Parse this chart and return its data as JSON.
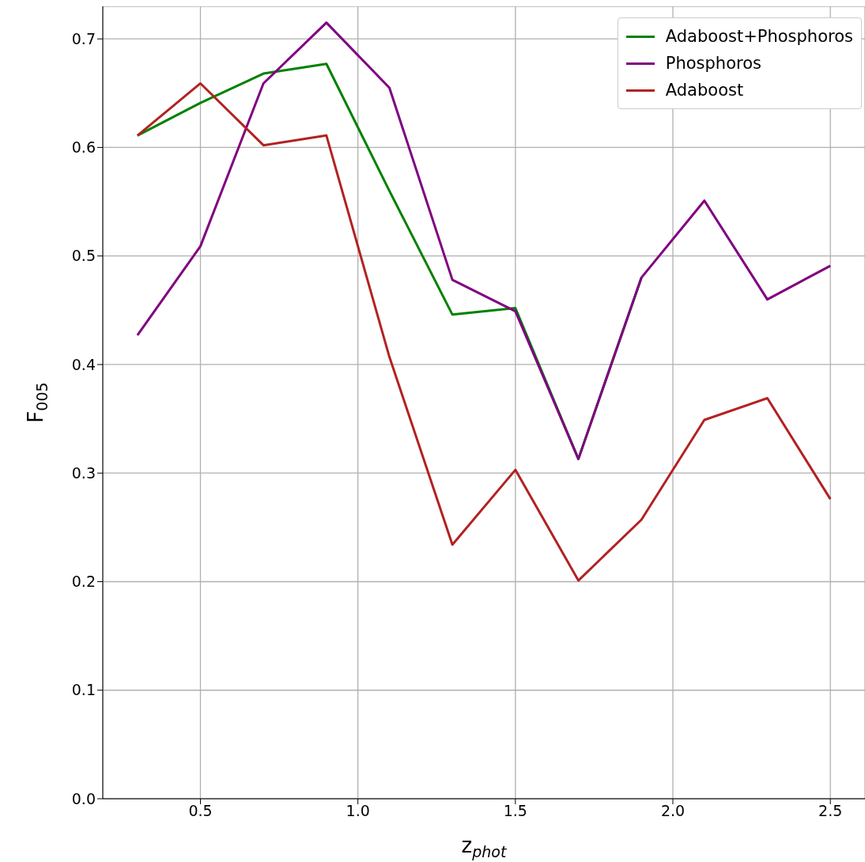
{
  "chart_data": {
    "type": "line",
    "xlabel": "z$_{phot}$",
    "ylabel": "F$_{005}$",
    "x": [
      0.3,
      0.5,
      0.7,
      0.9,
      1.1,
      1.3,
      1.5,
      1.7,
      1.9,
      2.1,
      2.3,
      2.5
    ],
    "xlim": [
      0.19,
      2.61
    ],
    "xticks": [
      {
        "value": 0.5,
        "label": "0.5"
      },
      {
        "value": 1.0,
        "label": "1.0"
      },
      {
        "value": 1.5,
        "label": "1.5"
      },
      {
        "value": 2.0,
        "label": "2.0"
      },
      {
        "value": 2.5,
        "label": "2.5"
      }
    ],
    "ylim": [
      0,
      0.73
    ],
    "yticks": [
      {
        "value": 0,
        "label": "0.0"
      },
      {
        "value": 0.1,
        "label": "0.1"
      },
      {
        "value": 0.2,
        "label": "0.2"
      },
      {
        "value": 0.3,
        "label": "0.3"
      },
      {
        "value": 0.4,
        "label": "0.4"
      },
      {
        "value": 0.5,
        "label": "0.5"
      },
      {
        "value": 0.6,
        "label": "0.6"
      },
      {
        "value": 0.7,
        "label": "0.7"
      }
    ],
    "grid": true,
    "legend": "top right",
    "marker": "none",
    "line_style": "solid",
    "series": [
      {
        "name": "Adaboost+Phosphoros",
        "color": "#008000",
        "values": [
          0.611,
          0.641,
          0.668,
          0.677,
          0.56,
          0.446,
          0.452,
          0.313,
          0.48,
          null,
          null,
          null
        ]
      },
      {
        "name": "Phosphoros",
        "color": "#800080",
        "values": [
          0.427,
          0.509,
          0.659,
          0.715,
          0.655,
          0.478,
          0.449,
          0.313,
          0.48,
          0.551,
          0.46,
          0.491
        ]
      },
      {
        "name": "Adaboost",
        "color": "#b22222",
        "values": [
          0.611,
          0.659,
          0.602,
          0.611,
          0.407,
          0.234,
          0.303,
          0.201,
          0.257,
          0.349,
          0.369,
          0.276
        ]
      }
    ]
  }
}
